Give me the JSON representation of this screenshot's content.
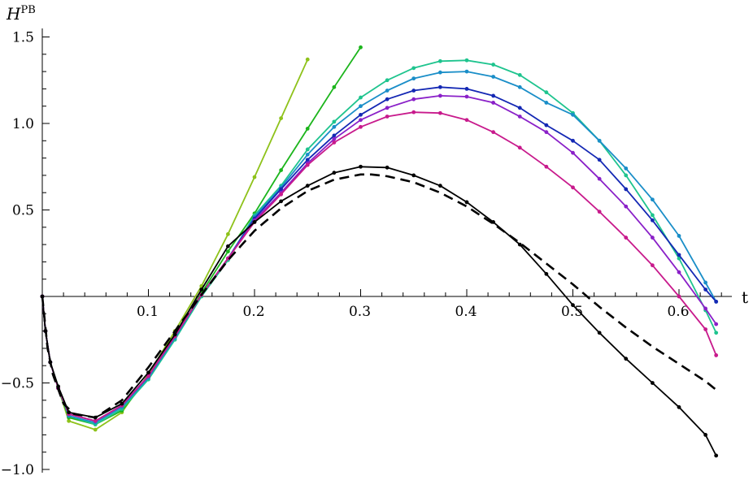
{
  "chart_data": {
    "type": "line",
    "title": "",
    "xlabel": "t",
    "ylabel": "H",
    "ylabel_superscript": "PB",
    "xlim": [
      0,
      0.66
    ],
    "ylim": [
      -1.0,
      1.5
    ],
    "grid": false,
    "legend": "none",
    "x_ticks": [
      {
        "value": 0.1,
        "label": "0.1"
      },
      {
        "value": 0.2,
        "label": "0.2"
      },
      {
        "value": 0.3,
        "label": "0.3"
      },
      {
        "value": 0.4,
        "label": "0.4"
      },
      {
        "value": 0.5,
        "label": "0.5"
      },
      {
        "value": 0.6,
        "label": "0.6"
      }
    ],
    "y_ticks": [
      {
        "value": 1.5,
        "label": "1.5"
      },
      {
        "value": 1.0,
        "label": "1.0"
      },
      {
        "value": 0.5,
        "label": "0.5"
      },
      {
        "value": -0.5,
        "label": "-0.5"
      },
      {
        "value": -1.0,
        "label": "-1.0"
      }
    ],
    "series": [
      {
        "color": "#8ec21a",
        "dashed": false,
        "markers": true,
        "x": [
          0,
          0.003,
          0.0075,
          0.015,
          0.025,
          0.05,
          0.075,
          0.1,
          0.125,
          0.15,
          0.175,
          0.2,
          0.225,
          0.25
        ],
        "y": [
          0,
          -0.2,
          -0.38,
          -0.53,
          -0.72,
          -0.77,
          -0.67,
          -0.45,
          -0.2,
          0.06,
          0.36,
          0.69,
          1.03,
          1.37
        ]
      },
      {
        "color": "#1cb51c",
        "dashed": false,
        "markers": true,
        "x": [
          0,
          0.003,
          0.0075,
          0.015,
          0.025,
          0.05,
          0.075,
          0.1,
          0.125,
          0.15,
          0.175,
          0.2,
          0.225,
          0.25,
          0.275,
          0.3
        ],
        "y": [
          0,
          -0.2,
          -0.38,
          -0.53,
          -0.7,
          -0.74,
          -0.66,
          -0.47,
          -0.24,
          0.02,
          0.26,
          0.48,
          0.73,
          0.97,
          1.21,
          1.44
        ]
      },
      {
        "color": "#1ec48e",
        "dashed": false,
        "markers": true,
        "x": [
          0,
          0.003,
          0.0075,
          0.015,
          0.025,
          0.05,
          0.075,
          0.1,
          0.125,
          0.15,
          0.175,
          0.2,
          0.225,
          0.25,
          0.275,
          0.3,
          0.325,
          0.35,
          0.375,
          0.4,
          0.425,
          0.45,
          0.475,
          0.5,
          0.525,
          0.55,
          0.575,
          0.6,
          0.625,
          0.635
        ],
        "y": [
          0,
          -0.2,
          -0.38,
          -0.53,
          -0.69,
          -0.74,
          -0.65,
          -0.48,
          -0.25,
          0.0,
          0.21,
          0.47,
          0.64,
          0.85,
          1.01,
          1.15,
          1.25,
          1.32,
          1.36,
          1.365,
          1.34,
          1.28,
          1.18,
          1.06,
          0.9,
          0.7,
          0.47,
          0.22,
          -0.08,
          -0.21
        ]
      },
      {
        "color": "#1a8ec8",
        "dashed": false,
        "markers": true,
        "x": [
          0,
          0.003,
          0.0075,
          0.015,
          0.025,
          0.05,
          0.075,
          0.1,
          0.125,
          0.15,
          0.175,
          0.2,
          0.225,
          0.25,
          0.275,
          0.3,
          0.325,
          0.35,
          0.375,
          0.4,
          0.425,
          0.45,
          0.475,
          0.5,
          0.525,
          0.55,
          0.575,
          0.6,
          0.625,
          0.635
        ],
        "y": [
          0,
          -0.2,
          -0.38,
          -0.53,
          -0.69,
          -0.73,
          -0.64,
          -0.47,
          -0.24,
          0.01,
          0.22,
          0.46,
          0.63,
          0.82,
          0.98,
          1.1,
          1.19,
          1.26,
          1.295,
          1.3,
          1.27,
          1.21,
          1.12,
          1.05,
          0.9,
          0.74,
          0.56,
          0.35,
          0.08,
          -0.03
        ]
      },
      {
        "color": "#1428b4",
        "dashed": false,
        "markers": true,
        "x": [
          0,
          0.003,
          0.0075,
          0.015,
          0.025,
          0.05,
          0.075,
          0.1,
          0.125,
          0.15,
          0.175,
          0.2,
          0.225,
          0.25,
          0.275,
          0.3,
          0.325,
          0.35,
          0.375,
          0.4,
          0.425,
          0.45,
          0.475,
          0.5,
          0.525,
          0.55,
          0.575,
          0.6,
          0.625,
          0.635
        ],
        "y": [
          0,
          -0.2,
          -0.38,
          -0.53,
          -0.68,
          -0.72,
          -0.63,
          -0.46,
          -0.23,
          0.01,
          0.22,
          0.45,
          0.62,
          0.79,
          0.93,
          1.05,
          1.14,
          1.19,
          1.21,
          1.2,
          1.16,
          1.09,
          0.99,
          0.9,
          0.79,
          0.62,
          0.44,
          0.24,
          0.04,
          -0.03
        ]
      },
      {
        "color": "#8a20c8",
        "dashed": false,
        "markers": true,
        "x": [
          0,
          0.003,
          0.0075,
          0.015,
          0.025,
          0.05,
          0.075,
          0.1,
          0.125,
          0.15,
          0.175,
          0.2,
          0.225,
          0.25,
          0.275,
          0.3,
          0.325,
          0.35,
          0.375,
          0.4,
          0.425,
          0.45,
          0.475,
          0.5,
          0.525,
          0.55,
          0.575,
          0.6,
          0.625,
          0.635
        ],
        "y": [
          0,
          -0.2,
          -0.38,
          -0.53,
          -0.68,
          -0.72,
          -0.63,
          -0.46,
          -0.23,
          0.01,
          0.22,
          0.44,
          0.6,
          0.77,
          0.91,
          1.02,
          1.09,
          1.14,
          1.16,
          1.155,
          1.12,
          1.04,
          0.95,
          0.83,
          0.68,
          0.52,
          0.34,
          0.14,
          -0.07,
          -0.16
        ]
      },
      {
        "color": "#c81a8c",
        "dashed": false,
        "markers": true,
        "x": [
          0,
          0.003,
          0.0075,
          0.015,
          0.025,
          0.05,
          0.075,
          0.1,
          0.125,
          0.15,
          0.175,
          0.2,
          0.225,
          0.25,
          0.275,
          0.3,
          0.325,
          0.35,
          0.375,
          0.4,
          0.425,
          0.45,
          0.475,
          0.5,
          0.525,
          0.55,
          0.575,
          0.6,
          0.625,
          0.635
        ],
        "y": [
          0,
          -0.2,
          -0.38,
          -0.53,
          -0.68,
          -0.72,
          -0.63,
          -0.46,
          -0.23,
          0.01,
          0.22,
          0.43,
          0.59,
          0.76,
          0.89,
          0.98,
          1.04,
          1.065,
          1.06,
          1.02,
          0.95,
          0.86,
          0.75,
          0.63,
          0.49,
          0.34,
          0.18,
          0.0,
          -0.19,
          -0.34
        ]
      },
      {
        "color": "#000000",
        "dashed": false,
        "markers": true,
        "x": [
          0,
          0.003,
          0.0075,
          0.015,
          0.025,
          0.05,
          0.075,
          0.1,
          0.125,
          0.15,
          0.175,
          0.2,
          0.225,
          0.25,
          0.275,
          0.3,
          0.325,
          0.35,
          0.375,
          0.4,
          0.425,
          0.45,
          0.475,
          0.5,
          0.525,
          0.55,
          0.575,
          0.6,
          0.625,
          0.635
        ],
        "y": [
          0,
          -0.2,
          -0.38,
          -0.52,
          -0.67,
          -0.7,
          -0.62,
          -0.44,
          -0.22,
          0.04,
          0.29,
          0.43,
          0.55,
          0.64,
          0.715,
          0.75,
          0.745,
          0.7,
          0.64,
          0.545,
          0.43,
          0.3,
          0.13,
          -0.05,
          -0.21,
          -0.36,
          -0.5,
          -0.64,
          -0.8,
          -0.92
        ]
      },
      {
        "color": "#000000",
        "dashed": true,
        "markers": false,
        "x": [
          0,
          0.005,
          0.01,
          0.02,
          0.03,
          0.05,
          0.075,
          0.1,
          0.125,
          0.15,
          0.175,
          0.2,
          0.225,
          0.25,
          0.275,
          0.3,
          0.31,
          0.325,
          0.35,
          0.375,
          0.4,
          0.425,
          0.45,
          0.475,
          0.5,
          0.525,
          0.55,
          0.575,
          0.6,
          0.625,
          0.635
        ],
        "y": [
          0,
          -0.3,
          -0.45,
          -0.62,
          -0.68,
          -0.7,
          -0.6,
          -0.41,
          -0.2,
          0.01,
          0.21,
          0.38,
          0.51,
          0.61,
          0.675,
          0.705,
          0.705,
          0.695,
          0.66,
          0.6,
          0.52,
          0.42,
          0.31,
          0.19,
          0.07,
          -0.06,
          -0.18,
          -0.29,
          -0.39,
          -0.49,
          -0.54
        ]
      }
    ]
  }
}
